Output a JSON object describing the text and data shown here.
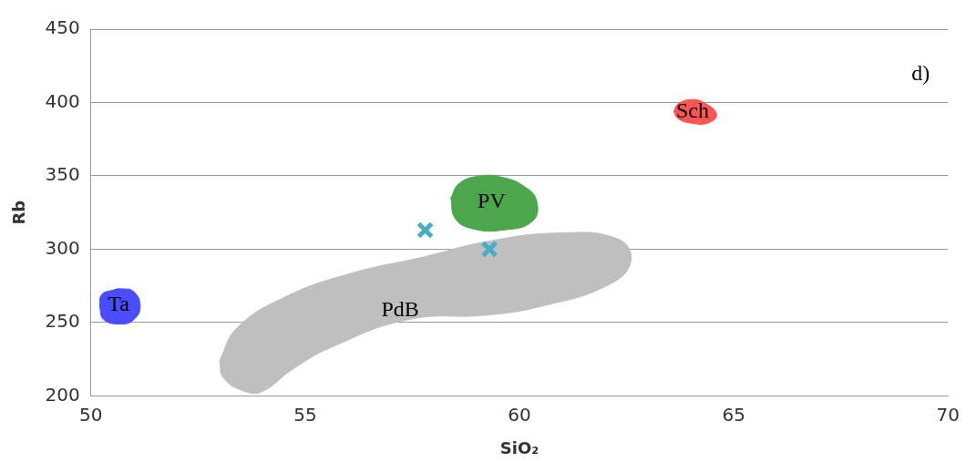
{
  "chart_data": {
    "type": "scatter",
    "xlabel": "SiO₂",
    "ylabel": "Rb",
    "xlim": [
      50,
      70
    ],
    "xticks": [
      50,
      55,
      60,
      65,
      70
    ],
    "ylim": [
      200,
      450
    ],
    "yticks": [
      200,
      250,
      300,
      350,
      400,
      450
    ],
    "grid": "y",
    "legend": false,
    "annotations": [
      "d)"
    ],
    "series": [
      {
        "name": "PdB",
        "type": "area",
        "color": "#bfbfbf",
        "x": [
          53.0,
          53.4,
          54.5,
          56.0,
          57.8,
          59.2,
          60.9,
          62.3,
          62.6,
          62.1,
          60.5,
          59.2,
          57.4,
          55.6,
          54.7,
          54.0,
          53.6,
          53.1
        ],
        "values": [
          224,
          246,
          267,
          283,
          295,
          305,
          311,
          307,
          292,
          276,
          261,
          255,
          252,
          233,
          218,
          203,
          203,
          212
        ]
      },
      {
        "name": "Ta",
        "type": "area",
        "color": "#4b4bff",
        "x": [
          50.2,
          50.25,
          50.5,
          50.7,
          51.0,
          51.15,
          51.0,
          50.7,
          50.3
        ],
        "values": [
          261,
          269,
          272,
          273,
          271,
          261,
          252,
          249,
          252
        ]
      },
      {
        "name": "PV",
        "type": "area",
        "color": "#4ca64c",
        "x": [
          58.4,
          58.6,
          59.1,
          59.6,
          60.1,
          60.4,
          60.3,
          59.6,
          58.9,
          58.5
        ],
        "values": [
          335,
          345,
          350,
          349,
          343,
          333,
          319,
          313,
          314,
          321
        ]
      },
      {
        "name": "Sch",
        "type": "area",
        "color": "#ff5555",
        "x": [
          63.6,
          63.7,
          64.0,
          64.3,
          64.6,
          64.4,
          64.0,
          63.7
        ],
        "values": [
          394,
          399,
          402,
          400,
          392,
          386,
          386,
          389
        ]
      },
      {
        "type": "scatter",
        "marker": "cross",
        "color": "#4bacc6",
        "x": [
          57.8,
          59.3
        ],
        "values": [
          313,
          300
        ]
      }
    ]
  }
}
